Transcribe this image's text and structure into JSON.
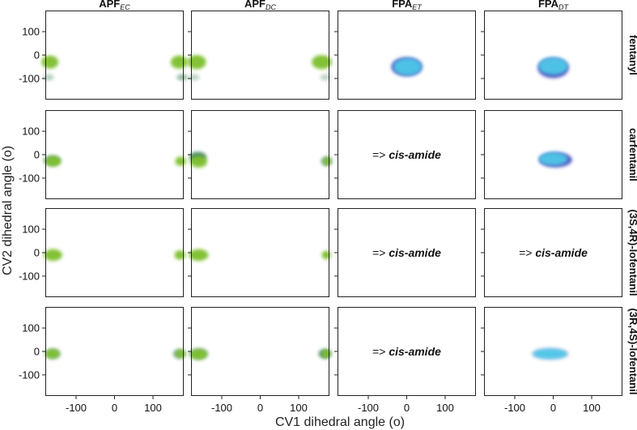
{
  "chart_data": {
    "type": "scatter",
    "xlabel": "CV1 dihedral angle (o)",
    "ylabel": "CV2 dihedral angle (o)",
    "xlim": [
      -180,
      180
    ],
    "ylim": [
      -190,
      190
    ],
    "xticks": [
      -100,
      0,
      100
    ],
    "yticks": [
      100,
      0,
      -100
    ],
    "grid": false,
    "columns": [
      {
        "base": "APF",
        "sub": "EC"
      },
      {
        "base": "APF",
        "sub": "DC"
      },
      {
        "base": "FPA",
        "sub": "ET"
      },
      {
        "base": "FPA",
        "sub": "DT"
      }
    ],
    "rows": [
      "fentanyl",
      "carfentanil",
      "(3S,4R)-lofentanil",
      "(3R,4S)-lofentanil"
    ],
    "annotation": {
      "arrow": "=>",
      "text": "cis-amide"
    },
    "colors": {
      "apf": "#7cbf2a",
      "apf_dark": "#2f7a4a",
      "fpa": "#4ec6e8",
      "fpa_dark": "#3a44b8"
    },
    "panels": [
      {
        "row": 0,
        "col": 0,
        "clusters": [
          {
            "x": -168,
            "y": -30,
            "rx": 22,
            "ry": 28,
            "color": "apf"
          },
          {
            "x": 168,
            "y": -30,
            "rx": 22,
            "ry": 28,
            "color": "apf"
          },
          {
            "x": -172,
            "y": -95,
            "rx": 14,
            "ry": 14,
            "color": "apf_dark",
            "alpha": 0.35
          },
          {
            "x": 176,
            "y": -95,
            "rx": 14,
            "ry": 14,
            "color": "apf_dark",
            "alpha": 0.5
          }
        ]
      },
      {
        "row": 0,
        "col": 1,
        "clusters": [
          {
            "x": -165,
            "y": -30,
            "rx": 24,
            "ry": 30,
            "color": "apf"
          },
          {
            "x": 160,
            "y": -30,
            "rx": 26,
            "ry": 30,
            "color": "apf"
          },
          {
            "x": -172,
            "y": -95,
            "rx": 14,
            "ry": 14,
            "color": "apf_dark",
            "alpha": 0.3
          },
          {
            "x": 170,
            "y": -95,
            "rx": 14,
            "ry": 14,
            "color": "apf_dark",
            "alpha": 0.3
          }
        ]
      },
      {
        "row": 0,
        "col": 2,
        "clusters": [
          {
            "x": 0,
            "y": -50,
            "rx": 40,
            "ry": 40,
            "color": "fpa_dark",
            "alpha": 0.9
          },
          {
            "x": 2,
            "y": -50,
            "rx": 37,
            "ry": 37,
            "color": "fpa"
          }
        ]
      },
      {
        "row": 0,
        "col": 3,
        "clusters": [
          {
            "x": 0,
            "y": -55,
            "rx": 40,
            "ry": 43,
            "color": "fpa_dark",
            "alpha": 0.9
          },
          {
            "x": 0,
            "y": -47,
            "rx": 39,
            "ry": 37,
            "color": "fpa"
          }
        ]
      },
      {
        "row": 1,
        "col": 0,
        "clusters": [
          {
            "x": -162,
            "y": -25,
            "rx": 22,
            "ry": 22,
            "color": "apf_dark",
            "alpha": 0.6
          },
          {
            "x": -160,
            "y": -28,
            "rx": 20,
            "ry": 22,
            "color": "apf"
          },
          {
            "x": 172,
            "y": -28,
            "rx": 14,
            "ry": 20,
            "color": "apf"
          }
        ]
      },
      {
        "row": 1,
        "col": 1,
        "clusters": [
          {
            "x": -162,
            "y": -10,
            "rx": 22,
            "ry": 22,
            "color": "apf_dark",
            "alpha": 0.85
          },
          {
            "x": -160,
            "y": -30,
            "rx": 22,
            "ry": 25,
            "color": "apf"
          },
          {
            "x": 172,
            "y": -28,
            "rx": 14,
            "ry": 20,
            "color": "apf_dark",
            "alpha": 0.6
          },
          {
            "x": 175,
            "y": -28,
            "rx": 10,
            "ry": 18,
            "color": "apf"
          }
        ]
      },
      {
        "row": 1,
        "col": 2,
        "annotated": true,
        "clusters": []
      },
      {
        "row": 1,
        "col": 3,
        "clusters": [
          {
            "x": 6,
            "y": -22,
            "rx": 43,
            "ry": 32,
            "color": "fpa_dark",
            "alpha": 0.9
          },
          {
            "x": 0,
            "y": -18,
            "rx": 38,
            "ry": 28,
            "color": "fpa"
          }
        ]
      },
      {
        "row": 2,
        "col": 0,
        "clusters": [
          {
            "x": -160,
            "y": -10,
            "rx": 24,
            "ry": 25,
            "color": "apf"
          },
          {
            "x": 170,
            "y": -10,
            "rx": 14,
            "ry": 20,
            "color": "apf"
          }
        ]
      },
      {
        "row": 2,
        "col": 1,
        "clusters": [
          {
            "x": -160,
            "y": -10,
            "rx": 25,
            "ry": 25,
            "color": "apf"
          },
          {
            "x": 172,
            "y": -10,
            "rx": 12,
            "ry": 18,
            "color": "apf"
          }
        ]
      },
      {
        "row": 2,
        "col": 2,
        "annotated": true,
        "clusters": []
      },
      {
        "row": 2,
        "col": 3,
        "annotated": true,
        "clusters": []
      },
      {
        "row": 3,
        "col": 0,
        "clusters": [
          {
            "x": -160,
            "y": -10,
            "rx": 20,
            "ry": 22,
            "color": "apf_dark",
            "alpha": 0.5
          },
          {
            "x": -162,
            "y": -10,
            "rx": 18,
            "ry": 20,
            "color": "apf"
          },
          {
            "x": 168,
            "y": -10,
            "rx": 16,
            "ry": 20,
            "color": "apf_dark",
            "alpha": 0.6
          },
          {
            "x": 172,
            "y": -10,
            "rx": 12,
            "ry": 18,
            "color": "apf"
          }
        ]
      },
      {
        "row": 3,
        "col": 1,
        "clusters": [
          {
            "x": -160,
            "y": -10,
            "rx": 24,
            "ry": 24,
            "color": "apf_dark",
            "alpha": 0.5
          },
          {
            "x": -160,
            "y": -12,
            "rx": 22,
            "ry": 22,
            "color": "apf"
          },
          {
            "x": 168,
            "y": -10,
            "rx": 16,
            "ry": 20,
            "color": "apf_dark",
            "alpha": 0.8
          },
          {
            "x": 172,
            "y": -10,
            "rx": 12,
            "ry": 18,
            "color": "apf"
          }
        ]
      },
      {
        "row": 3,
        "col": 2,
        "annotated": true,
        "clusters": []
      },
      {
        "row": 3,
        "col": 3,
        "clusters": [
          {
            "x": -8,
            "y": -10,
            "rx": 48,
            "ry": 25,
            "color": "fpa_dark",
            "alpha": 0.25
          },
          {
            "x": -8,
            "y": -10,
            "rx": 45,
            "ry": 22,
            "color": "fpa"
          }
        ]
      }
    ]
  }
}
